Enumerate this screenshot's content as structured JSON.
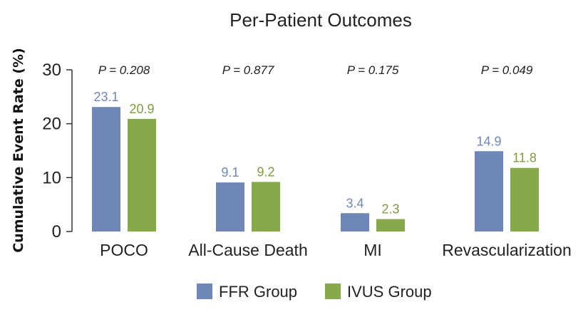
{
  "chart_data": {
    "type": "bar",
    "title": "Per-Patient Outcomes",
    "xlabel": "",
    "ylabel": "Cumulative Event Rate (%)",
    "ylim": [
      0,
      30
    ],
    "yticks": [
      0,
      10,
      20,
      30
    ],
    "grid": false,
    "legend_position": "bottom",
    "categories": [
      "POCO",
      "All-Cause Death",
      "MI",
      "Revascularization"
    ],
    "p_values": [
      "P = 0.208",
      "P = 0.877",
      "P = 0.175",
      "P = 0.049"
    ],
    "series": [
      {
        "name": "FFR Group",
        "color": "#6f87b8",
        "label_color": "#6f87b8",
        "values": [
          23.1,
          9.1,
          3.4,
          14.9
        ]
      },
      {
        "name": "IVUS Group",
        "color": "#86a94a",
        "label_color": "#7e9e3e",
        "values": [
          20.9,
          9.2,
          2.3,
          11.8
        ]
      }
    ]
  }
}
